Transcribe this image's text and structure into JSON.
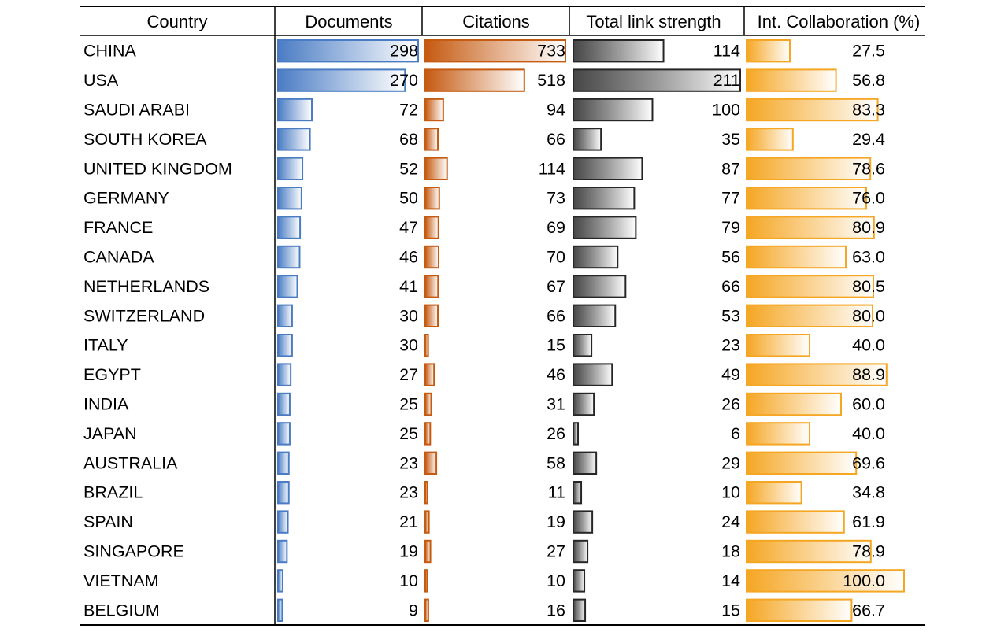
{
  "chart_data": {
    "type": "table",
    "columns": [
      "Country",
      "Documents",
      "Citations",
      "Total link strength",
      "Int. Collaboration (%)"
    ],
    "rows": [
      {
        "country": "CHINA",
        "documents": 298,
        "citations": 733,
        "link_strength": 114,
        "collab": "27.5"
      },
      {
        "country": "USA",
        "documents": 270,
        "citations": 518,
        "link_strength": 211,
        "collab": "56.8"
      },
      {
        "country": "SAUDI ARABI",
        "documents": 72,
        "citations": 94,
        "link_strength": 100,
        "collab": "83.3"
      },
      {
        "country": "SOUTH KOREA",
        "documents": 68,
        "citations": 66,
        "link_strength": 35,
        "collab": "29.4"
      },
      {
        "country": "UNITED KINGDOM",
        "documents": 52,
        "citations": 114,
        "link_strength": 87,
        "collab": "78.6"
      },
      {
        "country": "GERMANY",
        "documents": 50,
        "citations": 73,
        "link_strength": 77,
        "collab": "76.0"
      },
      {
        "country": "FRANCE",
        "documents": 47,
        "citations": 69,
        "link_strength": 79,
        "collab": "80.9"
      },
      {
        "country": "CANADA",
        "documents": 46,
        "citations": 70,
        "link_strength": 56,
        "collab": "63.0"
      },
      {
        "country": "NETHERLANDS",
        "documents": 41,
        "citations": 67,
        "link_strength": 66,
        "collab": "80.5"
      },
      {
        "country": "SWITZERLAND",
        "documents": 30,
        "citations": 66,
        "link_strength": 53,
        "collab": "80.0"
      },
      {
        "country": "ITALY",
        "documents": 30,
        "citations": 15,
        "link_strength": 23,
        "collab": "40.0"
      },
      {
        "country": "EGYPT",
        "documents": 27,
        "citations": 46,
        "link_strength": 49,
        "collab": "88.9"
      },
      {
        "country": "INDIA",
        "documents": 25,
        "citations": 31,
        "link_strength": 26,
        "collab": "60.0"
      },
      {
        "country": "JAPAN",
        "documents": 25,
        "citations": 26,
        "link_strength": 6,
        "collab": "40.0"
      },
      {
        "country": "AUSTRALIA",
        "documents": 23,
        "citations": 58,
        "link_strength": 29,
        "collab": "69.6"
      },
      {
        "country": "BRAZIL",
        "documents": 23,
        "citations": 11,
        "link_strength": 10,
        "collab": "34.8"
      },
      {
        "country": "SPAIN",
        "documents": 21,
        "citations": 19,
        "link_strength": 24,
        "collab": "61.9"
      },
      {
        "country": "SINGAPORE",
        "documents": 19,
        "citations": 27,
        "link_strength": 18,
        "collab": "78.9"
      },
      {
        "country": "VIETNAM",
        "documents": 10,
        "citations": 10,
        "link_strength": 14,
        "collab": "100.0"
      },
      {
        "country": "BELGIUM",
        "documents": 9,
        "citations": 16,
        "link_strength": 15,
        "collab": "66.7"
      }
    ],
    "data_bars": {
      "documents": {
        "color": "#4a7cc4",
        "max": 298
      },
      "citations": {
        "color": "#c55a11",
        "max": 733
      },
      "link_strength": {
        "color": "#262626",
        "max": 211
      },
      "collab": {
        "color": "#f5a623",
        "max": 100
      }
    }
  }
}
